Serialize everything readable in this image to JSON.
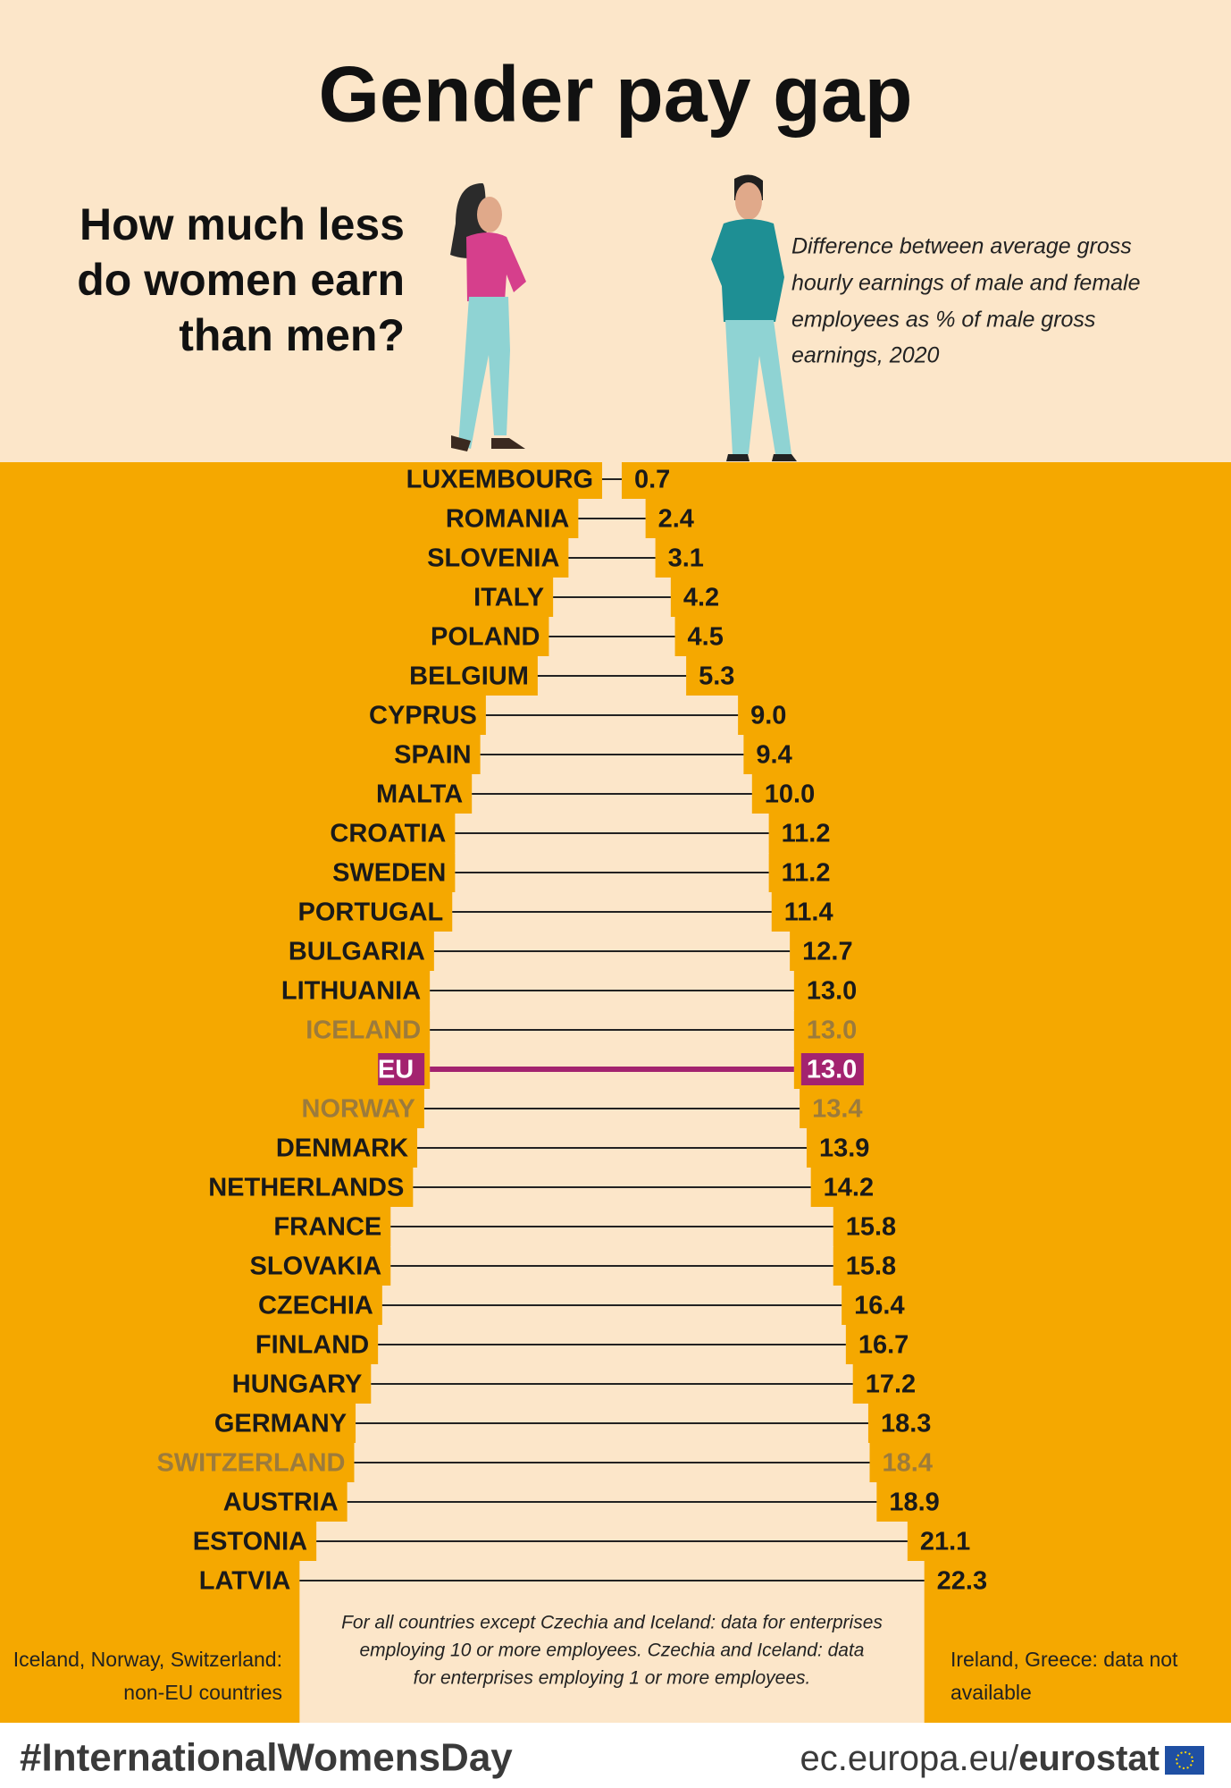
{
  "chart_data": {
    "type": "gap",
    "title": "Gender pay gap",
    "question": [
      "How much less",
      "do women earn",
      "than men?"
    ],
    "subtitle": [
      "Difference between average gross",
      "hourly earnings of male and female",
      "employees as % of male gross",
      "earnings, 2020"
    ],
    "categories": [
      "LUXEMBOURG",
      "ROMANIA",
      "SLOVENIA",
      "ITALY",
      "POLAND",
      "BELGIUM",
      "CYPRUS",
      "SPAIN",
      "MALTA",
      "CROATIA",
      "SWEDEN",
      "PORTUGAL",
      "BULGARIA",
      "LITHUANIA",
      "ICELAND",
      "EU",
      "NORWAY",
      "DENMARK",
      "NETHERLANDS",
      "FRANCE",
      "SLOVAKIA",
      "CZECHIA",
      "FINLAND",
      "HUNGARY",
      "GERMANY",
      "SWITZERLAND",
      "AUSTRIA",
      "ESTONIA",
      "LATVIA"
    ],
    "values": [
      0.7,
      2.4,
      3.1,
      4.2,
      4.5,
      5.3,
      9.0,
      9.4,
      10.0,
      11.2,
      11.2,
      11.4,
      12.7,
      13.0,
      13.0,
      13.0,
      13.4,
      13.9,
      14.2,
      15.8,
      15.8,
      16.4,
      16.7,
      17.2,
      18.3,
      18.4,
      18.9,
      21.1,
      22.3
    ],
    "value_labels": [
      "0.7",
      "2.4",
      "3.1",
      "4.2",
      "4.5",
      "5.3",
      "9.0",
      "9.4",
      "10.0",
      "11.2",
      "11.2",
      "11.4",
      "12.7",
      "13.0",
      "13.0",
      "13.0",
      "13.4",
      "13.9",
      "14.2",
      "15.8",
      "15.8",
      "16.4",
      "16.7",
      "17.2",
      "18.3",
      "18.4",
      "18.9",
      "21.1",
      "22.3"
    ],
    "label_colors": [
      "#1a1a1a",
      "#1a1a1a",
      "#1a1a1a",
      "#1a1a1a",
      "#1a1a1a",
      "#1a1a1a",
      "#1a1a1a",
      "#1a1a1a",
      "#1a1a1a",
      "#1a1a1a",
      "#1a1a1a",
      "#1a1a1a",
      "#1a1a1a",
      "#1a1a1a",
      "#9c7b3c",
      "#ffffff",
      "#9c7b3c",
      "#1a1a1a",
      "#1a1a1a",
      "#1a1a1a",
      "#1a1a1a",
      "#1a1a1a",
      "#1a1a1a",
      "#1a1a1a",
      "#1a1a1a",
      "#9c7b3c",
      "#1a1a1a",
      "#1a1a1a",
      "#1a1a1a"
    ],
    "highlight": "EU",
    "highlight_color": "#a3236f",
    "line_color": "#222222",
    "gap_color": "#fce6c9",
    "note_center": [
      "For all countries except Czechia and Iceland: data for enterprises",
      "employing 10 or more employees. Czechia and Iceland: data",
      "for enterprises employing 1 or more employees."
    ],
    "note_left": [
      "Iceland, Norway, Switzerland:",
      "non-EU countries"
    ],
    "note_right": [
      "Ireland, Greece: data not",
      "available"
    ],
    "hashtag": "#InternationalWomensDay",
    "source_domain": "ec.europa.eu/",
    "source_name": "eurostat"
  }
}
